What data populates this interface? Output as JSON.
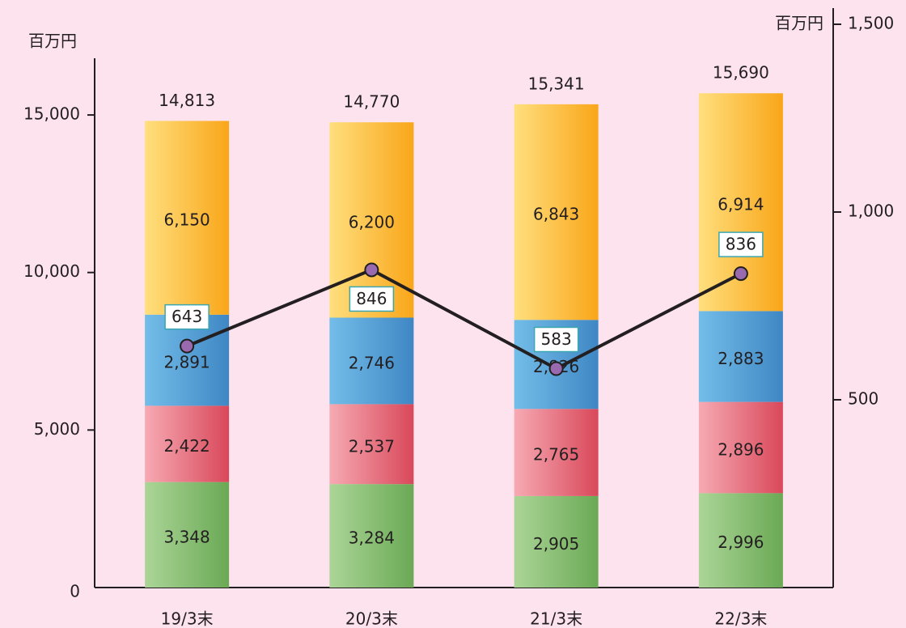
{
  "chart_data": {
    "type": "stacked-bar-line",
    "y_label": "百万円",
    "y2_label": "百万円",
    "categories": [
      "19/3末",
      "20/3末",
      "21/3末",
      "22/3末"
    ],
    "series": [
      {
        "color": [
          "#abd597",
          "#6aa955"
        ],
        "values": [
          3348,
          3284,
          2905,
          2996
        ],
        "value_labels": [
          "3,348",
          "3,284",
          "2,905",
          "2,996"
        ]
      },
      {
        "color": [
          "#f6aab3",
          "#d9485a"
        ],
        "values": [
          2422,
          2537,
          2765,
          2896
        ],
        "value_labels": [
          "2,422",
          "2,537",
          "2,765",
          "2,896"
        ]
      },
      {
        "color": [
          "#73bde9",
          "#3f87c4"
        ],
        "values": [
          2891,
          2746,
          2826,
          2883
        ],
        "value_labels": [
          "2,891",
          "2,746",
          "2,826",
          "2,883"
        ]
      },
      {
        "color": [
          "#ffdf7e",
          "#f9a619"
        ],
        "values": [
          6150,
          6200,
          6843,
          6914
        ],
        "value_labels": [
          "6,150",
          "6,200",
          "6,843",
          "6,914"
        ]
      },
      {
        "type": "line",
        "axis": "y2",
        "color": "#231f20",
        "marker_color": "#9a6aae",
        "values": [
          643,
          846,
          583,
          836
        ]
      }
    ],
    "totals": [
      14813,
      14770,
      15341,
      15690
    ],
    "total_labels": [
      "14,813",
      "14,770",
      "15,341",
      "15,690"
    ],
    "ylim": [
      0,
      16800
    ],
    "yticks": [
      0,
      {
        "value": 5000,
        "label": "5,000"
      },
      {
        "value": 10000,
        "label": "10,000"
      },
      {
        "value": 15000,
        "label": "15,000"
      }
    ],
    "y2lim": [
      0,
      1500
    ],
    "y2ticks": [
      500,
      {
        "value": 1000,
        "label": "1,000"
      },
      {
        "value": 1500,
        "label": "1,500"
      }
    ]
  }
}
